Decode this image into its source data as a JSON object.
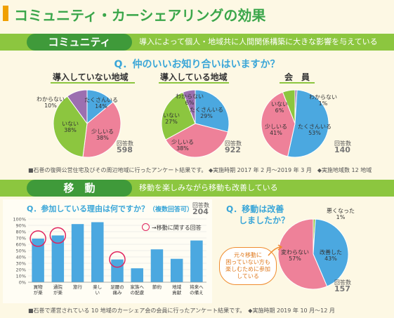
{
  "page": {
    "title": "コミュニティ・カーシェアリングの効果"
  },
  "section_community": {
    "tab_label": "コミュニティ",
    "description": "導入によって個人・地域共に人間関係構築に大きな影響を与えている",
    "question": "Q．仲のいいお知り合いはいますか？",
    "respondents_label": "回答数",
    "note": "■石巻の復興公営住宅及びその周辺地域に行ったアンケート結果です。 ◆実施時期 2017 年 2 月～2019 年 3 月　◆実施地域数 12 地域"
  },
  "section_mobility": {
    "tab_label": "移　動",
    "description": "移動を楽しみながら移動も改善している",
    "question_bar": "Q．参加している理由は何ですか？",
    "question_bar_suffix": "（複数回答可）",
    "question_pie": "Q．移動は改善",
    "question_pie_line2": "しましたか？",
    "legend_circle_label": "→移動に関する回答",
    "bubble_text": [
      "元々移動に",
      "困っていない方も",
      "楽しむために参加",
      "している"
    ],
    "note": "■石巻で運営されている 10 地域のカーシェア会の会員に行ったアンケート結果です。　◆実施時期 2019 年 10 月～12 月"
  },
  "chart_data": [
    {
      "type": "pie",
      "title": "導入していない地域",
      "respondents": 598,
      "slices": [
        {
          "label": "たくさんいる",
          "value": 14,
          "color": "#4ba8e0"
        },
        {
          "label": "少しいる",
          "value": 38,
          "color": "#ee8199"
        },
        {
          "label": "いない",
          "value": 38,
          "color": "#8cc63f"
        },
        {
          "label": "わからない",
          "value": 10,
          "color": "#9c6fb0"
        }
      ]
    },
    {
      "type": "pie",
      "title": "導入している地域",
      "respondents": 922,
      "slices": [
        {
          "label": "たくさんいる",
          "value": 29,
          "color": "#4ba8e0"
        },
        {
          "label": "少しいる",
          "value": 38,
          "color": "#ee8199"
        },
        {
          "label": "いない",
          "value": 27,
          "color": "#8cc63f"
        },
        {
          "label": "わからない",
          "value": 6,
          "color": "#9c6fb0"
        }
      ]
    },
    {
      "type": "pie",
      "title": "会　員",
      "respondents": 140,
      "slices": [
        {
          "label": "わからない",
          "value": 1,
          "color": "#9c6fb0"
        },
        {
          "label": "たくさんいる",
          "value": 53,
          "color": "#4ba8e0"
        },
        {
          "label": "少しいる",
          "value": 41,
          "color": "#ee8199"
        },
        {
          "label": "いない",
          "value": 6,
          "color": "#8cc63f"
        }
      ]
    },
    {
      "type": "bar",
      "title": "Q．参加している理由は何ですか？（複数回答可）",
      "respondents": 204,
      "categories": [
        "買物が楽",
        "通院が楽",
        "旅行",
        "楽しい",
        "足腰の痛み",
        "家族への配慮",
        "節約",
        "地域貢献",
        "将来への備え"
      ],
      "values": [
        69,
        74,
        92,
        95,
        36,
        22,
        52,
        37,
        66
      ],
      "highlighted": [
        "買物が楽",
        "通院が楽",
        "足腰の痛み"
      ],
      "ylim": [
        0,
        100
      ],
      "yticks": [
        "0%",
        "10%",
        "20%",
        "30%",
        "40%",
        "50%",
        "60%",
        "70%",
        "80%",
        "90%",
        "100%"
      ],
      "color": "#4ba8e0"
    },
    {
      "type": "pie",
      "title": "Q．移動は改善しましたか？",
      "respondents": 157,
      "slices": [
        {
          "label": "悪くなった",
          "value": 1,
          "color": "#8cc63f"
        },
        {
          "label": "改善した",
          "value": 43,
          "color": "#4ba8e0"
        },
        {
          "label": "変わらない",
          "value": 57,
          "color": "#ee8199"
        }
      ]
    }
  ]
}
